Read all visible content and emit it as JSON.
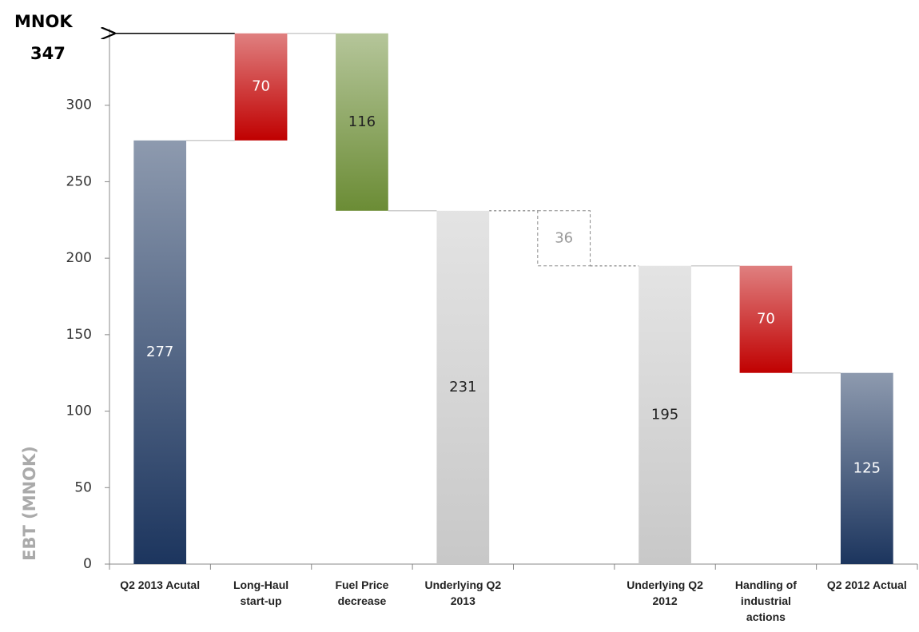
{
  "chart_data": {
    "type": "waterfall",
    "categories": [
      "Q2 2013 Acutal",
      "Long-Haul start-up",
      "Fuel Price decrease",
      "Underlying Q2 2013",
      null,
      "Underlying Q2 2012",
      "Handling of industrial actions",
      "Q2 2012 Actual"
    ],
    "values": [
      277,
      70,
      116,
      231,
      36,
      195,
      70,
      125
    ],
    "measure": [
      "absolute",
      "increase",
      "decrease",
      "absolute",
      "decrease",
      "absolute",
      "decrease",
      "absolute"
    ],
    "colors": [
      "#1c355e",
      "#c00000",
      "#6b8c35",
      "#c8c8c8",
      "none",
      "#c8c8c8",
      "#c00000",
      "#1c355e"
    ],
    "label_colors": [
      "#ffffff",
      "#ffffff",
      "#222222",
      "#222222",
      "#999999",
      "#222222",
      "#ffffff",
      "#ffffff"
    ],
    "ylim": [
      0,
      350
    ],
    "yticks": [
      0,
      50,
      100,
      150,
      200,
      250,
      300
    ],
    "y_label": "EBT (MNOK)",
    "annotation": {
      "unit": "MNOK",
      "value": 347
    }
  }
}
